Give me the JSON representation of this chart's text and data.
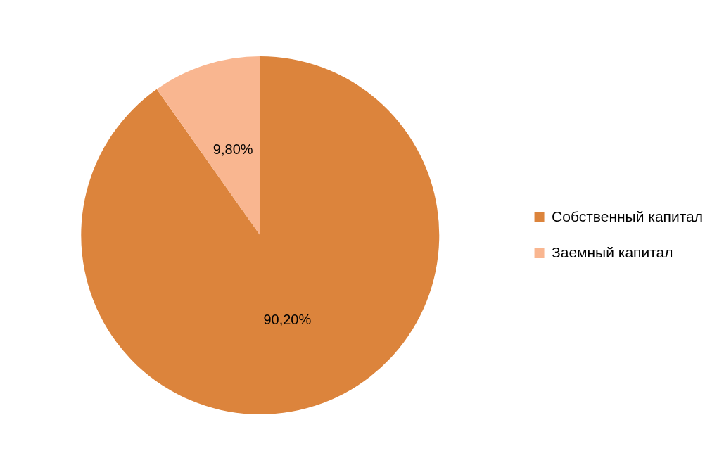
{
  "chart_data": {
    "type": "pie",
    "categories": [
      "Собственный капитал",
      "Заемный капитал"
    ],
    "values": [
      90.2,
      9.8
    ],
    "colors": [
      "#dc843c",
      "#f9b690"
    ],
    "value_labels": [
      "90,20%",
      "9,80%"
    ],
    "legend": "right"
  }
}
